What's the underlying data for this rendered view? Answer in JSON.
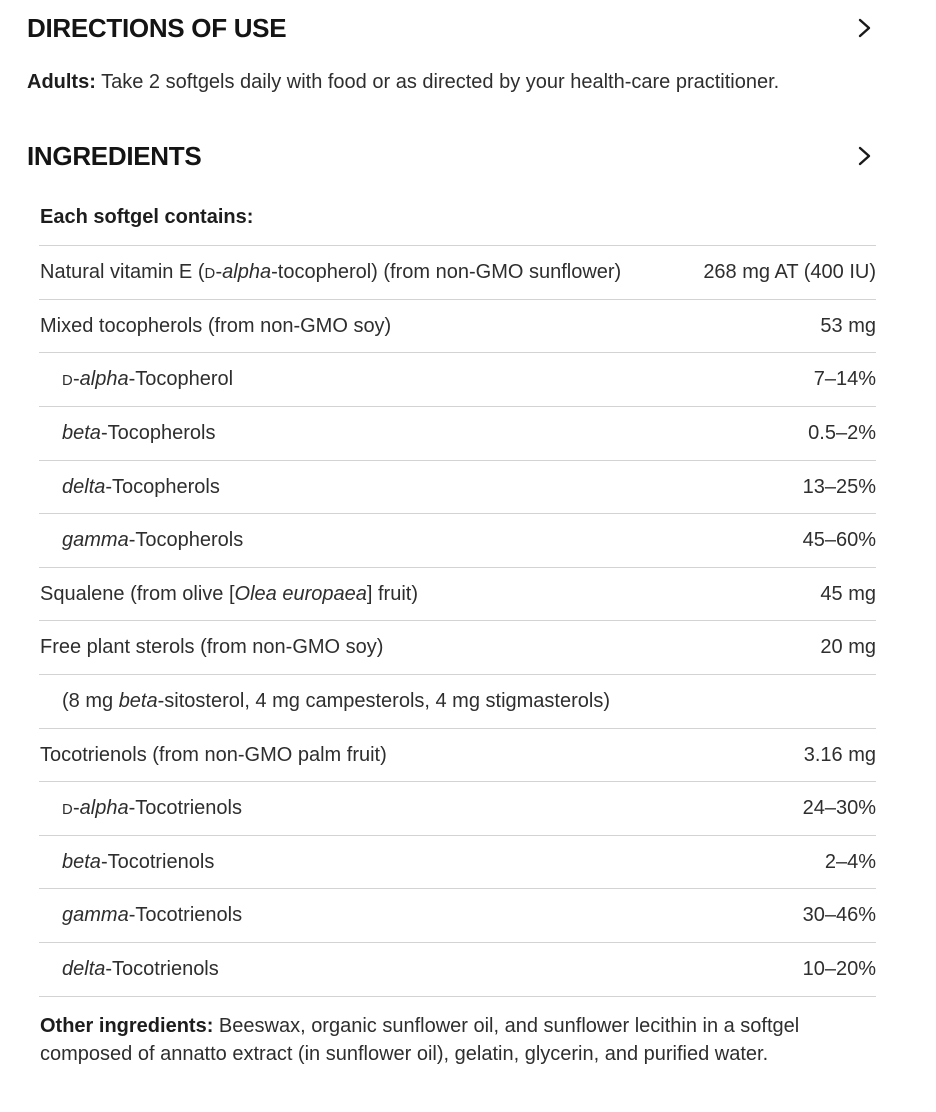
{
  "colors": {
    "text": "#2e2e2e",
    "heading": "#141414",
    "divider": "#d3d3d3",
    "background": "#ffffff"
  },
  "icons": {
    "chevron_right": "›"
  },
  "directions": {
    "title": "DIRECTIONS OF USE",
    "label": "Adults:",
    "text": "Take 2 softgels daily with food or as directed by your health-care practitioner."
  },
  "ingredients": {
    "title": "INGREDIENTS",
    "caption": "Each softgel contains:",
    "rows": [
      {
        "indent": 0,
        "name": [
          {
            "t": "Natural vitamin E (",
            "s": "n"
          },
          {
            "t": "D",
            "s": "sc"
          },
          {
            "t": "-",
            "s": "n"
          },
          {
            "t": "alpha",
            "s": "i"
          },
          {
            "t": "-tocopherol) (from non-GMO sunflower)",
            "s": "n"
          }
        ],
        "value": "268 mg AT (400 IU)"
      },
      {
        "indent": 0,
        "name": [
          {
            "t": "Mixed tocopherols (from non-GMO soy)",
            "s": "n"
          }
        ],
        "value": "53 mg"
      },
      {
        "indent": 1,
        "name": [
          {
            "t": "D",
            "s": "sc"
          },
          {
            "t": "-",
            "s": "n"
          },
          {
            "t": "alpha",
            "s": "i"
          },
          {
            "t": "-Tocopherol",
            "s": "n"
          }
        ],
        "value": "7–14%"
      },
      {
        "indent": 1,
        "name": [
          {
            "t": "beta",
            "s": "i"
          },
          {
            "t": "-Tocopherols",
            "s": "n"
          }
        ],
        "value": "0.5–2%"
      },
      {
        "indent": 1,
        "name": [
          {
            "t": "delta",
            "s": "i"
          },
          {
            "t": "-Tocopherols",
            "s": "n"
          }
        ],
        "value": "13–25%"
      },
      {
        "indent": 1,
        "name": [
          {
            "t": "gamma",
            "s": "i"
          },
          {
            "t": "-Tocopherols",
            "s": "n"
          }
        ],
        "value": "45–60%"
      },
      {
        "indent": 0,
        "name": [
          {
            "t": "Squalene (from olive [",
            "s": "n"
          },
          {
            "t": "Olea europaea",
            "s": "i"
          },
          {
            "t": "] fruit)",
            "s": "n"
          }
        ],
        "value": "45 mg"
      },
      {
        "indent": 0,
        "name": [
          {
            "t": "Free plant sterols (from non-GMO soy)",
            "s": "n"
          }
        ],
        "value": "20 mg"
      },
      {
        "indent": 1,
        "name": [
          {
            "t": "(8 mg ",
            "s": "n"
          },
          {
            "t": "beta",
            "s": "i"
          },
          {
            "t": "-sitosterol, 4 mg campesterols, 4 mg stigmasterols)",
            "s": "n"
          }
        ],
        "value": ""
      },
      {
        "indent": 0,
        "name": [
          {
            "t": "Tocotrienols (from non-GMO palm fruit)",
            "s": "n"
          }
        ],
        "value": "3.16 mg"
      },
      {
        "indent": 1,
        "name": [
          {
            "t": "D",
            "s": "sc"
          },
          {
            "t": "-",
            "s": "n"
          },
          {
            "t": "alpha",
            "s": "i"
          },
          {
            "t": "-Tocotrienols",
            "s": "n"
          }
        ],
        "value": "24–30%"
      },
      {
        "indent": 1,
        "name": [
          {
            "t": "beta",
            "s": "i"
          },
          {
            "t": "-Tocotrienols",
            "s": "n"
          }
        ],
        "value": "2–4%"
      },
      {
        "indent": 1,
        "name": [
          {
            "t": "gamma",
            "s": "i"
          },
          {
            "t": "-Tocotrienols",
            "s": "n"
          }
        ],
        "value": "30–46%"
      },
      {
        "indent": 1,
        "name": [
          {
            "t": "delta",
            "s": "i"
          },
          {
            "t": "-Tocotrienols",
            "s": "n"
          }
        ],
        "value": "10–20%"
      }
    ],
    "other_label": "Other ingredients:",
    "other_text": "Beeswax, organic sunflower oil, and sunflower lecithin in a softgel composed of annatto extract (in sunflower oil), gelatin, glycerin, and purified water."
  }
}
